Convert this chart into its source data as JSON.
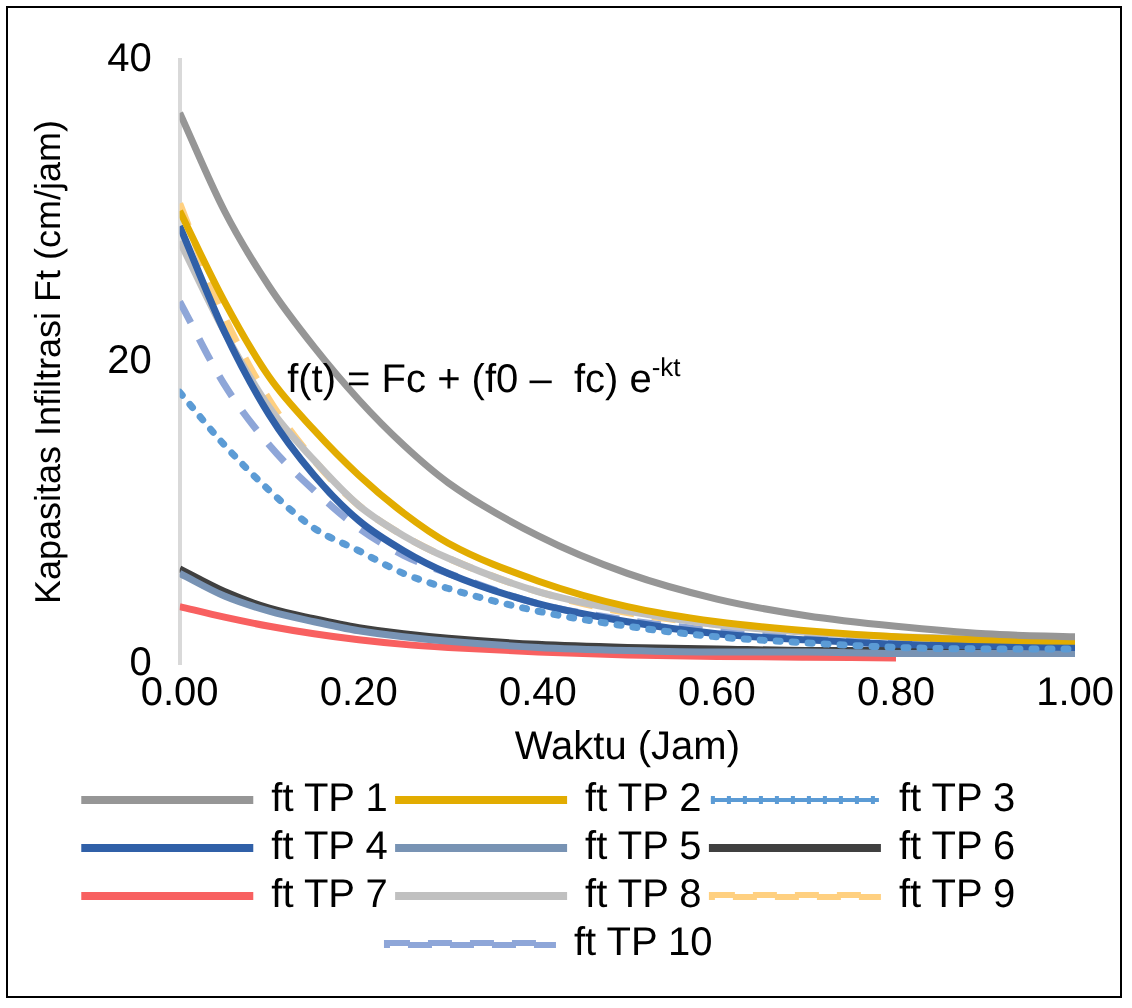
{
  "chart_data": {
    "type": "line",
    "xlabel": "Waktu (Jam)",
    "ylabel": "Kapasitas Infiltrasi Ft (cm/jam)",
    "x": [
      0,
      0.05,
      0.1,
      0.15,
      0.2,
      0.25,
      0.3,
      0.4,
      0.5,
      0.6,
      0.7,
      0.8,
      0.9,
      1.0
    ],
    "xlim": [
      0,
      1
    ],
    "xticks": [
      {
        "value": 0,
        "label": "0.00"
      },
      {
        "value": 0.2,
        "label": "0.20"
      },
      {
        "value": 0.4,
        "label": "0.40"
      },
      {
        "value": 0.6,
        "label": "0.60"
      },
      {
        "value": 0.8,
        "label": "0.80"
      },
      {
        "value": 1,
        "label": "1.00"
      }
    ],
    "ylim": [
      0,
      40
    ],
    "yticks": [
      0,
      20,
      40
    ],
    "grid": false,
    "legend": "bottom",
    "marker": "none",
    "annotations": [
      "f(t) = Fc + (f0 –  fc) e$^{-kt}$"
    ],
    "series": [
      {
        "name": "ft TP 1",
        "color": "#969696",
        "values": [
          36.5,
          30,
          25,
          21,
          17.5,
          14.5,
          12,
          8.5,
          6,
          4.3,
          3.2,
          2.5,
          2,
          1.8
        ]
      },
      {
        "name": "ft TP 2",
        "color": "#e2ac00",
        "values": [
          30,
          24,
          19,
          15.5,
          12.5,
          10,
          8,
          5.5,
          3.8,
          2.8,
          2.2,
          1.8,
          1.6,
          1.5
        ]
      },
      {
        "name": "ft TP 3",
        "color": "#5b9bd5",
        "line_style": "dotted",
        "values": [
          18,
          14.5,
          11.5,
          9,
          7.5,
          6,
          5,
          3.5,
          2.5,
          1.8,
          1.4,
          1.1,
          1,
          1
        ]
      },
      {
        "name": "ft TP 4",
        "color": "#3060a8",
        "values": [
          29,
          22,
          16.5,
          12.5,
          9.5,
          7.5,
          6,
          4,
          2.8,
          2,
          1.6,
          1.3,
          1.2,
          1.1
        ]
      },
      {
        "name": "ft TP 5",
        "color": "#7893b4",
        "values": [
          6,
          4.5,
          3.5,
          2.8,
          2.2,
          1.8,
          1.5,
          1.1,
          0.9,
          0.8,
          0.8,
          0.7,
          0.7,
          0.7
        ]
      },
      {
        "name": "ft TP 6",
        "color": "#404040",
        "values": [
          6.3,
          4.8,
          3.7,
          3,
          2.4,
          2,
          1.7,
          1.3,
          1.1,
          1,
          0.9,
          0.9,
          0.9,
          0.9
        ]
      },
      {
        "name": "ft TP 7",
        "color": "#f86060",
        "values": [
          3.8,
          3.1,
          2.5,
          2,
          1.6,
          1.3,
          1.1,
          0.8,
          0.6,
          0.5,
          0.45,
          0.4,
          null,
          null
        ]
      },
      {
        "name": "ft TP 8",
        "color": "#c0c0c0",
        "values": [
          28,
          22,
          17,
          13.5,
          10.5,
          8.5,
          7,
          4.8,
          3.5,
          2.6,
          2.1,
          1.8,
          1.7,
          1.6
        ]
      },
      {
        "name": "ft TP 9",
        "color": "#ffd080",
        "line_style": "dashed",
        "values": [
          30.5,
          23,
          17.5,
          13.5,
          10.5,
          8.5,
          7,
          4.8,
          3.4,
          2.6,
          null,
          null,
          null,
          null
        ]
      },
      {
        "name": "ft TP 10",
        "color": "#8ea6d8",
        "line_style": "dashed",
        "values": [
          24,
          18.5,
          14.5,
          11.5,
          9,
          7.2,
          6,
          4,
          2.9,
          2.2,
          1.7,
          1.4,
          1.3,
          1.2
        ]
      }
    ]
  }
}
